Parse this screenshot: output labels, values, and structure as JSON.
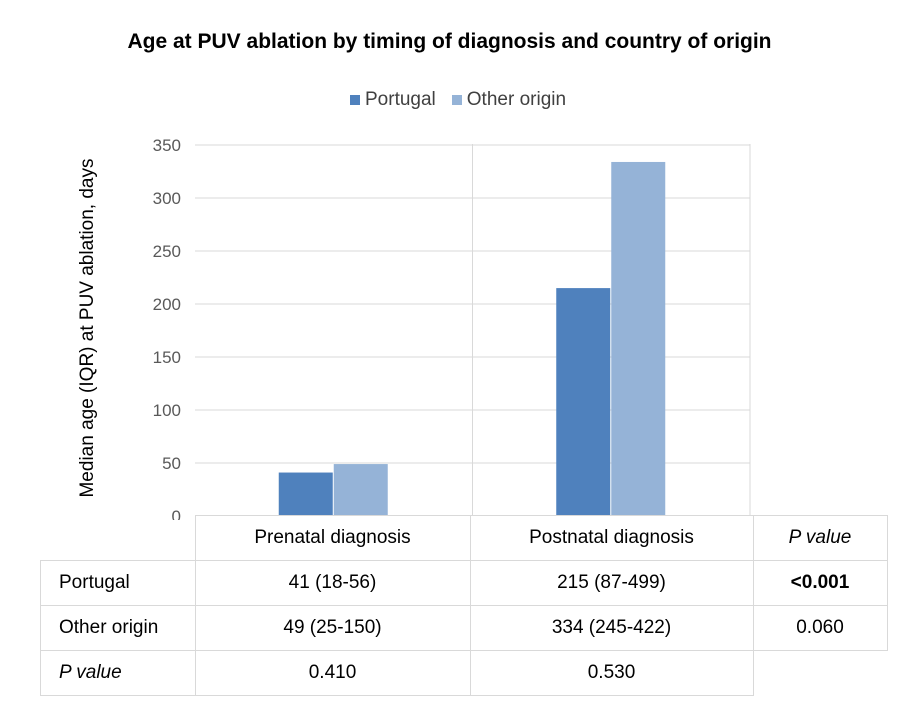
{
  "chart_data": {
    "type": "bar",
    "title": "Age at PUV ablation by timing of diagnosis and country of origin",
    "ylabel": "Median age (IQR) at PUV ablation, days",
    "ylim": [
      0,
      350
    ],
    "yticks": [
      0,
      50,
      100,
      150,
      200,
      250,
      300,
      350
    ],
    "grid": true,
    "legend_position": "top-center",
    "categories": [
      "Prenatal diagnosis",
      "Postnatal diagnosis"
    ],
    "series": [
      {
        "name": "Portugal",
        "values": [
          41,
          215
        ],
        "color": "#4f81bd"
      },
      {
        "name": "Other origin",
        "values": [
          49,
          334
        ],
        "color": "#95b3d7"
      }
    ]
  },
  "table": {
    "pvalue_header": "P value",
    "rows": [
      {
        "label": "Portugal",
        "prenatal": "41 (18-56)",
        "postnatal": "215 (87-499)",
        "pvalue": "<0.001"
      },
      {
        "label": "Other origin",
        "prenatal": "49 (25-150)",
        "postnatal": "334 (245-422)",
        "pvalue": "0.060"
      },
      {
        "label": "P value",
        "prenatal": "0.410",
        "postnatal": "0.530"
      }
    ]
  }
}
